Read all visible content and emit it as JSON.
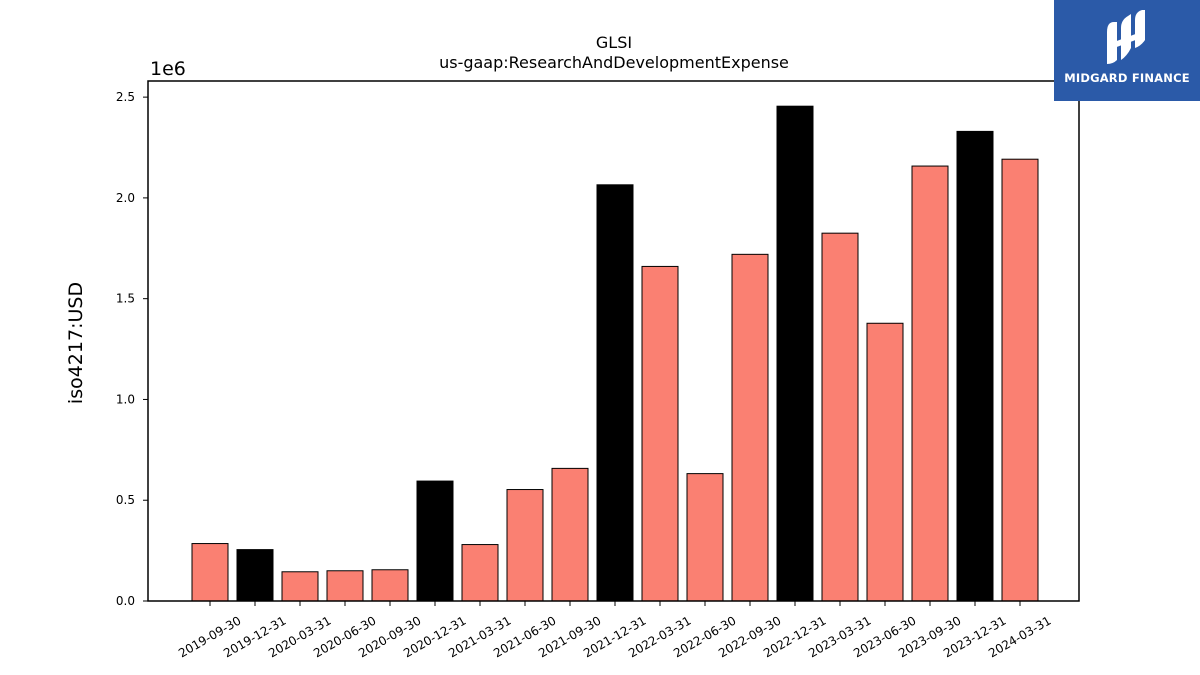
{
  "chart_data": {
    "type": "bar",
    "title": "GLSI",
    "subtitle": "us-gaap:ResearchAndDevelopmentExpense",
    "xlabel": "",
    "ylabel": "iso4217:USD",
    "y_scale_label": "1e6",
    "ylim": [
      0,
      2.58
    ],
    "y_ticks": [
      "0.0",
      "0.5",
      "1.0",
      "1.5",
      "2.0",
      "2.5"
    ],
    "grid": false,
    "legend": "none",
    "categories": [
      "2019-09-30",
      "2019-12-31",
      "2020-03-31",
      "2020-06-30",
      "2020-09-30",
      "2020-12-31",
      "2021-03-31",
      "2021-06-30",
      "2021-09-30",
      "2021-12-31",
      "2022-03-31",
      "2022-06-30",
      "2022-09-30",
      "2022-12-31",
      "2023-03-31",
      "2023-06-30",
      "2023-09-30",
      "2023-12-31",
      "2024-03-31"
    ],
    "values": [
      0.285,
      0.255,
      0.145,
      0.15,
      0.155,
      0.595,
      0.28,
      0.553,
      0.658,
      2.065,
      1.66,
      0.632,
      1.72,
      2.455,
      1.825,
      1.378,
      2.158,
      2.33,
      2.192
    ],
    "bar_colors": [
      "#fa8072",
      "#000000",
      "#fa8072",
      "#fa8072",
      "#fa8072",
      "#000000",
      "#fa8072",
      "#fa8072",
      "#fa8072",
      "#000000",
      "#fa8072",
      "#fa8072",
      "#fa8072",
      "#000000",
      "#fa8072",
      "#fa8072",
      "#fa8072",
      "#000000",
      "#fa8072"
    ]
  },
  "logo": {
    "text": "MIDGARD FINANCE",
    "background": "#2b5aa8"
  }
}
